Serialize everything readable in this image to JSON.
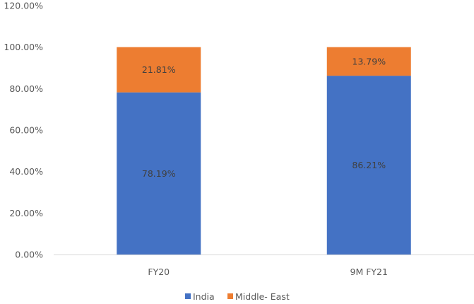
{
  "chart_data": {
    "type": "bar",
    "stacked": true,
    "categories": [
      "FY20",
      "9M FY21"
    ],
    "series": [
      {
        "name": "India",
        "values": [
          78.19,
          86.21
        ],
        "labels": [
          "78.19%",
          "86.21%"
        ],
        "color": "#4472C4"
      },
      {
        "name": "Middle- East",
        "values": [
          21.81,
          13.79
        ],
        "labels": [
          "21.81%",
          "13.79%"
        ],
        "color": "#ED7D31"
      }
    ],
    "ylim": [
      0,
      120
    ],
    "y_ticks": [
      0,
      20,
      40,
      60,
      80,
      100,
      120
    ],
    "y_tick_labels": [
      "0.00%",
      "20.00%",
      "40.00%",
      "60.00%",
      "80.00%",
      "100.00%",
      "120.00%"
    ],
    "grid": false,
    "legend_position": "bottom",
    "axis_color": "#D9D9D9"
  }
}
